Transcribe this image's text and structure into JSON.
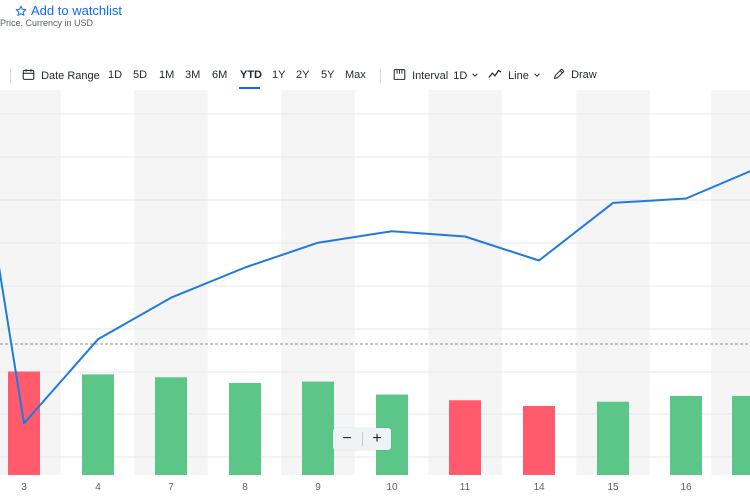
{
  "header": {
    "edge_glyph": ")",
    "watchlist_label": "Add to watchlist",
    "currency_note": "Price. Currency in USD"
  },
  "toolbar": {
    "date_range_label": "Date Range",
    "ranges": [
      "1D",
      "5D",
      "1M",
      "3M",
      "6M",
      "YTD",
      "1Y",
      "2Y",
      "5Y",
      "Max"
    ],
    "active_range": "YTD",
    "interval_label": "Interval",
    "interval_value": "1D",
    "chart_type_label": "Line",
    "draw_label": "Draw"
  },
  "zoom": {
    "out_label": "−",
    "in_label": "+"
  },
  "colors": {
    "line": "#1f7ae0",
    "volume_up": "#5cc689",
    "volume_down": "#ff5b6c",
    "accent": "#0f69ff",
    "band": "#f5f5f5"
  },
  "chart_data": {
    "type": "line",
    "x": [
      "3",
      "4",
      "7",
      "8",
      "9",
      "10",
      "11",
      "14",
      "15",
      "16"
    ],
    "price_series": {
      "values": [
        33,
        42.5,
        47.2,
        50.6,
        53.4,
        54.7,
        54.1,
        51.4,
        57.9,
        58.4,
        61.7
      ],
      "note": "y-axis values not shown; first point is off-screen left, last point runs past the right edge"
    },
    "volume": {
      "values": [
        36,
        35,
        34,
        32,
        32.5,
        28,
        26,
        24,
        25.5,
        27.5,
        27.5
      ],
      "direction": [
        "down",
        "up",
        "up",
        "up",
        "up",
        "up",
        "down",
        "down",
        "up",
        "up",
        "up"
      ]
    },
    "reference_line": "previous close (dashed)",
    "grid": true
  }
}
